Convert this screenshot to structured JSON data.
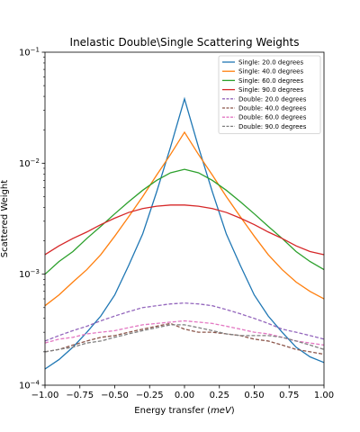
{
  "chart_data": {
    "type": "line",
    "title": "Inelastic Double\\Single Scattering Weights",
    "xlabel_prefix": "Energy transfer (",
    "xlabel_unit": "meV",
    "xlabel_suffix": ")",
    "ylabel": "Scattered Weight",
    "xlim": [
      -1.0,
      1.0
    ],
    "ylim": [
      0.0001,
      0.1
    ],
    "yscale": "log",
    "xticks": [
      "−1.00",
      "−0.75",
      "−0.50",
      "−0.25",
      "0.00",
      "0.25",
      "0.50",
      "0.75",
      "1.00"
    ],
    "xtick_values": [
      -1.0,
      -0.75,
      -0.5,
      -0.25,
      0.0,
      0.25,
      0.5,
      0.75,
      1.0
    ],
    "yticks": [
      {
        "value": 0.0001,
        "base": "10",
        "exp": "−4"
      },
      {
        "value": 0.001,
        "base": "10",
        "exp": "−3"
      },
      {
        "value": 0.01,
        "base": "10",
        "exp": "−2"
      },
      {
        "value": 0.1,
        "base": "10",
        "exp": "−1"
      }
    ],
    "legend_position": "top-right",
    "x": [
      -1.0,
      -0.9,
      -0.8,
      -0.7,
      -0.6,
      -0.5,
      -0.4,
      -0.3,
      -0.2,
      -0.1,
      0.0,
      0.1,
      0.2,
      0.3,
      0.4,
      0.5,
      0.6,
      0.7,
      0.8,
      0.9,
      1.0
    ],
    "series": [
      {
        "name": "Single: 20.0 degrees",
        "color": "#1f77b4",
        "dash": false,
        "values": [
          0.00014,
          0.00017,
          0.00022,
          0.0003,
          0.00042,
          0.00065,
          0.0012,
          0.0023,
          0.0055,
          0.014,
          0.038,
          0.014,
          0.0055,
          0.0023,
          0.0012,
          0.00065,
          0.00042,
          0.0003,
          0.00022,
          0.00018,
          0.00016
        ]
      },
      {
        "name": "Single: 40.0 degrees",
        "color": "#ff7f0e",
        "dash": false,
        "values": [
          0.00052,
          0.00065,
          0.00085,
          0.0011,
          0.0015,
          0.0022,
          0.0033,
          0.005,
          0.0078,
          0.012,
          0.019,
          0.012,
          0.0078,
          0.005,
          0.0033,
          0.0022,
          0.0015,
          0.0011,
          0.00085,
          0.0007,
          0.0006
        ]
      },
      {
        "name": "Single: 60.0 degrees",
        "color": "#2ca02c",
        "dash": false,
        "values": [
          0.001,
          0.0013,
          0.0016,
          0.0021,
          0.0027,
          0.0035,
          0.0045,
          0.0057,
          0.007,
          0.0082,
          0.0088,
          0.0082,
          0.007,
          0.0057,
          0.0045,
          0.0035,
          0.0027,
          0.0021,
          0.0016,
          0.0013,
          0.0011
        ]
      },
      {
        "name": "Single: 90.0 degrees",
        "color": "#d62728",
        "dash": false,
        "values": [
          0.0015,
          0.0018,
          0.0021,
          0.0024,
          0.0028,
          0.0032,
          0.0036,
          0.0039,
          0.0041,
          0.0042,
          0.0042,
          0.0041,
          0.0039,
          0.0036,
          0.0032,
          0.0028,
          0.0024,
          0.0021,
          0.0018,
          0.0016,
          0.0015
        ]
      },
      {
        "name": "Double: 20.0 degrees",
        "color": "#9467bd",
        "dash": true,
        "values": [
          0.00025,
          0.00028,
          0.00031,
          0.00034,
          0.00038,
          0.00042,
          0.00046,
          0.0005,
          0.00052,
          0.00054,
          0.00055,
          0.00054,
          0.00052,
          0.00048,
          0.00044,
          0.0004,
          0.00036,
          0.00032,
          0.0003,
          0.00028,
          0.00026
        ]
      },
      {
        "name": "Double: 40.0 degrees",
        "color": "#8c564b",
        "dash": true,
        "values": [
          0.0002,
          0.00021,
          0.00023,
          0.00025,
          0.00027,
          0.00028,
          0.0003,
          0.00032,
          0.00034,
          0.00036,
          0.00032,
          0.0003,
          0.0003,
          0.00029,
          0.00028,
          0.00026,
          0.00025,
          0.00023,
          0.00021,
          0.0002,
          0.00019
        ]
      },
      {
        "name": "Double: 60.0 degrees",
        "color": "#e377c2",
        "dash": true,
        "values": [
          0.00024,
          0.00026,
          0.00027,
          0.00029,
          0.0003,
          0.00031,
          0.00033,
          0.00035,
          0.00036,
          0.00037,
          0.00038,
          0.00037,
          0.00036,
          0.00034,
          0.00032,
          0.0003,
          0.00029,
          0.00027,
          0.00025,
          0.00024,
          0.00023
        ]
      },
      {
        "name": "Double: 90.0 degrees",
        "color": "#7f7f7f",
        "dash": true,
        "values": [
          0.0002,
          0.00021,
          0.00022,
          0.00024,
          0.00025,
          0.00027,
          0.00029,
          0.00031,
          0.00033,
          0.00035,
          0.00035,
          0.00033,
          0.00031,
          0.00029,
          0.00028,
          0.00028,
          0.00028,
          0.00027,
          0.00025,
          0.00023,
          0.00021
        ]
      }
    ]
  }
}
